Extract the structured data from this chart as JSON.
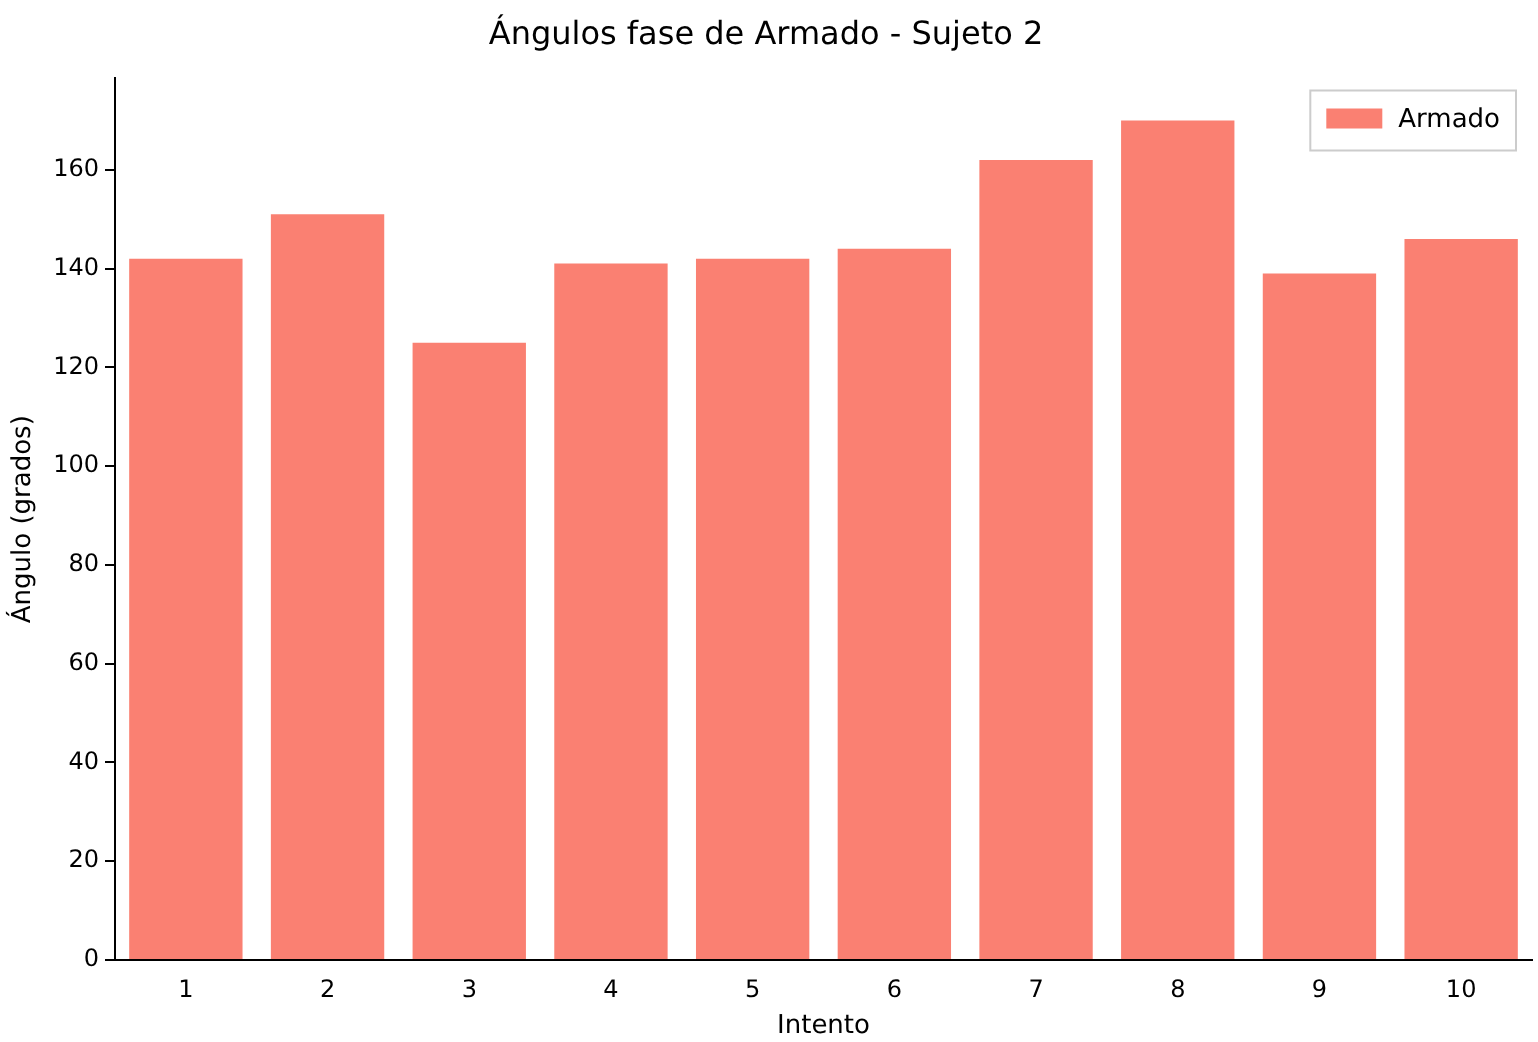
{
  "chart_data": {
    "type": "bar",
    "title": "Ángulos fase de Armado - Sujeto 2",
    "xlabel": "Intento",
    "ylabel": "Ángulo (grados)",
    "categories": [
      "1",
      "2",
      "3",
      "4",
      "5",
      "6",
      "7",
      "8",
      "9",
      "10"
    ],
    "series": [
      {
        "name": "Armado",
        "color": "#fa8072",
        "values": [
          142,
          151,
          125,
          141,
          142,
          144,
          162,
          170,
          139,
          146
        ]
      }
    ],
    "ylim": [
      0,
      178.5
    ],
    "yticks": [
      0,
      20,
      40,
      60,
      80,
      100,
      120,
      140,
      160
    ],
    "grid": false,
    "legend": "top right"
  }
}
